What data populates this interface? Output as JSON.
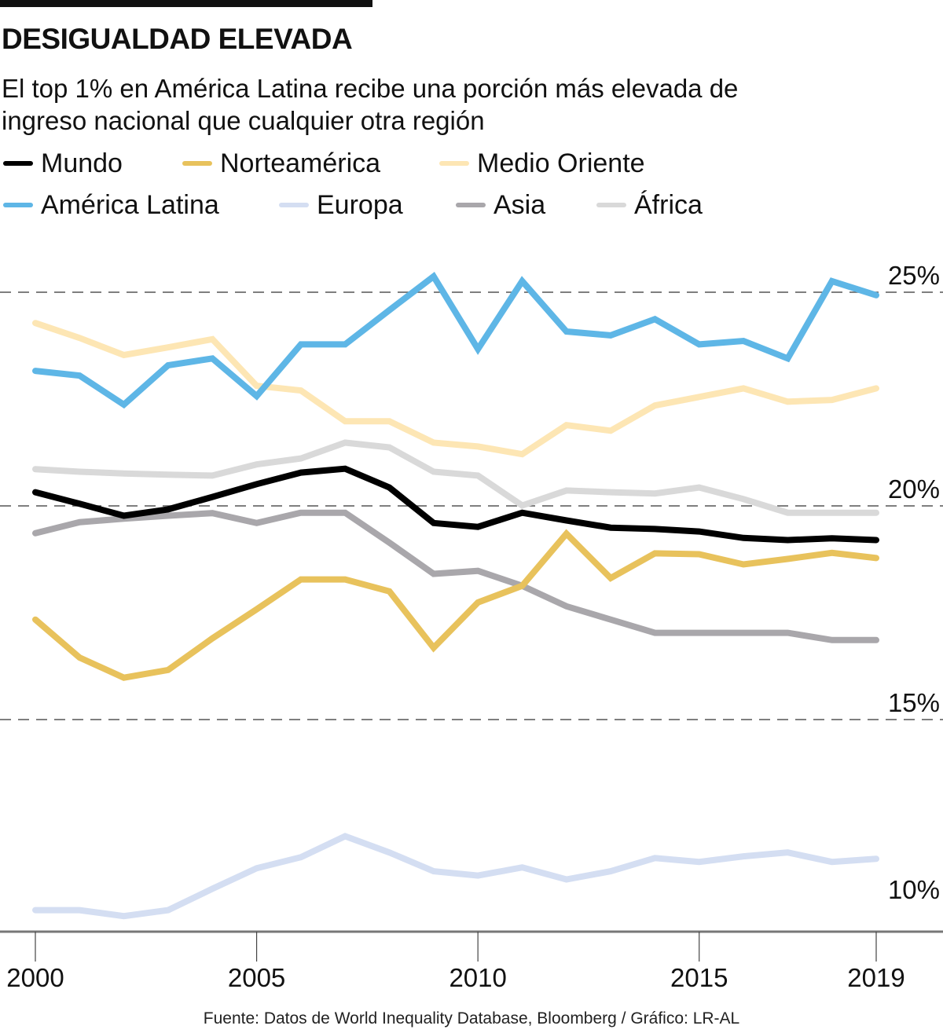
{
  "header": {
    "title": "DESIGUALDAD ELEVADA",
    "subtitle": "El top 1% en América Latina recibe una porción más elevada de ingreso nacional que cualquier otra región"
  },
  "footer": {
    "source": "Fuente: Datos de World Inequality Database, Bloomberg / Gráfico: LR-AL"
  },
  "chart_data": {
    "type": "line",
    "title": "DESIGUALDAD ELEVADA",
    "subtitle": "El top 1% en América Latina recibe una porción más elevada de ingreso nacional que cualquier otra región",
    "xlabel": "",
    "ylabel": "",
    "x": [
      2000,
      2001,
      2002,
      2003,
      2004,
      2005,
      2006,
      2007,
      2008,
      2009,
      2010,
      2011,
      2012,
      2013,
      2014,
      2015,
      2016,
      2017,
      2018,
      2019
    ],
    "x_ticks": [
      2000,
      2005,
      2010,
      2015,
      2019
    ],
    "x_tick_labels": [
      "2000",
      "2005",
      "2010",
      "2015",
      "2019"
    ],
    "y_ticks": [
      10,
      15,
      20,
      25
    ],
    "y_tick_labels": [
      "10%",
      "15%",
      "20%",
      "25%"
    ],
    "ylim": [
      10,
      25.6
    ],
    "xlim": [
      2000,
      2019
    ],
    "grid": "horizontal dashed at 15%, 20%, 25%",
    "legend_position": "top",
    "series": [
      {
        "name": "Mundo",
        "color": "#000000",
        "values": [
          20.32,
          20.05,
          19.77,
          19.92,
          20.21,
          20.51,
          20.78,
          20.87,
          20.43,
          19.6,
          19.51,
          19.84,
          19.66,
          19.49,
          19.46,
          19.4,
          19.25,
          19.2,
          19.24,
          19.2
        ]
      },
      {
        "name": "Norteamérica",
        "color": "#e8c25c",
        "values": [
          17.34,
          16.45,
          15.98,
          16.16,
          16.9,
          17.58,
          18.28,
          18.28,
          18.0,
          16.68,
          17.74,
          18.13,
          19.35,
          18.31,
          18.89,
          18.87,
          18.63,
          18.76,
          18.9,
          18.78
        ]
      },
      {
        "name": "Medio Oriente",
        "color": "#fde6b4",
        "values": [
          24.28,
          23.93,
          23.53,
          23.71,
          23.9,
          22.81,
          22.7,
          21.98,
          21.98,
          21.48,
          21.39,
          21.21,
          21.89,
          21.76,
          22.35,
          22.55,
          22.75,
          22.44,
          22.48,
          22.75
        ]
      },
      {
        "name": "América Latina",
        "color": "#5eb6e6",
        "values": [
          23.16,
          23.05,
          22.37,
          23.29,
          23.45,
          22.57,
          23.78,
          23.78,
          24.58,
          25.37,
          23.67,
          25.26,
          24.08,
          23.99,
          24.37,
          23.78,
          23.86,
          23.45,
          25.26,
          24.93
        ]
      },
      {
        "name": "Europa",
        "color": "#d4def2",
        "values": [
          10.54,
          10.54,
          10.4,
          10.54,
          11.04,
          11.52,
          11.78,
          12.27,
          11.89,
          11.45,
          11.35,
          11.54,
          11.26,
          11.45,
          11.76,
          11.67,
          11.8,
          11.89,
          11.67,
          11.74
        ]
      },
      {
        "name": "Asia",
        "color": "#a9a7ab",
        "values": [
          19.36,
          19.62,
          19.7,
          19.77,
          19.83,
          19.6,
          19.84,
          19.84,
          19.14,
          18.41,
          18.48,
          18.13,
          17.65,
          17.34,
          17.03,
          17.03,
          17.03,
          17.03,
          16.86,
          16.86
        ]
      },
      {
        "name": "África",
        "color": "#d9d9d9",
        "values": [
          20.86,
          20.8,
          20.76,
          20.73,
          20.71,
          20.97,
          21.11,
          21.48,
          21.37,
          20.8,
          20.71,
          20.01,
          20.36,
          20.32,
          20.29,
          20.43,
          20.16,
          19.84,
          19.84,
          19.84
        ]
      }
    ],
    "draw_order": [
      "Europa",
      "África",
      "Medio Oriente",
      "Asia",
      "Norteamérica",
      "Mundo",
      "América Latina"
    ]
  }
}
